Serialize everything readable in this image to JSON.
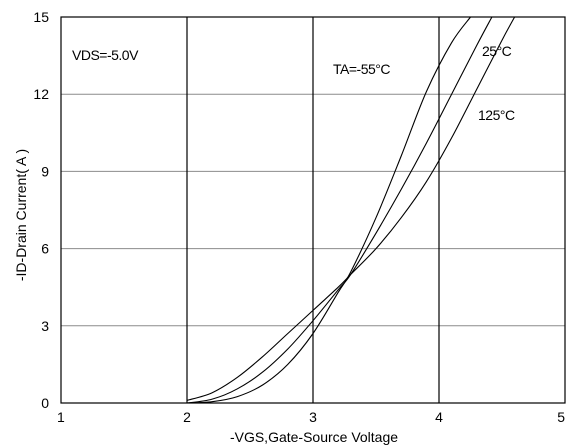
{
  "chart_data": {
    "type": "line",
    "xlim": [
      1,
      5
    ],
    "ylim": [
      0,
      15
    ],
    "x_ticks": [
      "1",
      "2",
      "3",
      "4",
      "5"
    ],
    "y_ticks": [
      "0",
      "3",
      "6",
      "9",
      "12",
      "15"
    ],
    "xlabel": "-VGS,Gate-Source Voltage",
    "ylabel": "-ID-Drain Current( A )",
    "grid": true,
    "annotations": {
      "vds": "VDS=-5.0V",
      "ta_m55": "TA=-55°C",
      "t25": "25°C",
      "t125": "125°C"
    },
    "series": [
      {
        "label": "-55°C",
        "x": [
          2.0,
          2.2,
          2.4,
          2.6,
          2.8,
          3.0,
          3.2,
          3.3,
          3.5,
          3.7,
          3.9,
          4.1,
          4.25
        ],
        "y": [
          0.0,
          0.05,
          0.25,
          0.7,
          1.5,
          2.7,
          4.3,
          5.1,
          7.2,
          9.6,
          12.1,
          14.0,
          15.0
        ]
      },
      {
        "label": "25°C",
        "x": [
          2.0,
          2.2,
          2.4,
          2.6,
          2.8,
          3.0,
          3.2,
          3.3,
          3.5,
          3.7,
          3.9,
          4.1,
          4.3,
          4.42
        ],
        "y": [
          0.0,
          0.15,
          0.55,
          1.2,
          2.1,
          3.2,
          4.4,
          5.0,
          6.6,
          8.3,
          10.1,
          12.0,
          13.9,
          15.0
        ]
      },
      {
        "label": "125°C",
        "x": [
          2.0,
          2.2,
          2.4,
          2.6,
          2.8,
          3.0,
          3.2,
          3.3,
          3.5,
          3.7,
          3.9,
          4.1,
          4.3,
          4.5,
          4.6
        ],
        "y": [
          0.1,
          0.4,
          1.0,
          1.8,
          2.7,
          3.6,
          4.5,
          5.0,
          6.0,
          7.2,
          8.6,
          10.3,
          12.2,
          14.1,
          15.0
        ]
      }
    ]
  }
}
